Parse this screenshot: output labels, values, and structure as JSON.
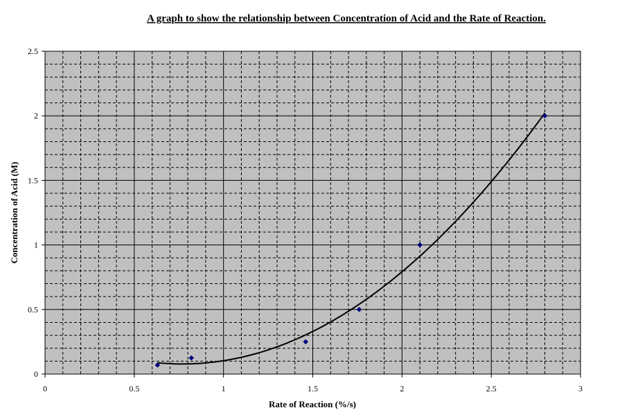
{
  "chart_data": {
    "type": "scatter",
    "title": "A graph to show the relationship between Concentration of Acid and the Rate of Reaction.",
    "xlabel": "Rate of Reaction (%/s)",
    "ylabel": "Concentration of Acid (M)",
    "xlim": [
      0,
      3
    ],
    "ylim": [
      0,
      2.5
    ],
    "x_ticks": [
      "0",
      "0.5",
      "1",
      "1.5",
      "2",
      "2.5",
      "3"
    ],
    "y_ticks": [
      "0",
      "0.5",
      "1",
      "1.5",
      "2",
      "2.5"
    ],
    "grid": {
      "major": true,
      "minor": true,
      "minor_style": "dashed"
    },
    "plot_background": "#c0c0c0",
    "marker_color": "#000080",
    "trendline_color": "#000000",
    "series": [
      {
        "marker": "diamond",
        "points": [
          {
            "x": 0.63,
            "y": 0.07
          },
          {
            "x": 0.82,
            "y": 0.125
          },
          {
            "x": 1.46,
            "y": 0.25
          },
          {
            "x": 1.76,
            "y": 0.5
          },
          {
            "x": 2.1,
            "y": 1.0
          },
          {
            "x": 2.8,
            "y": 2.0
          }
        ]
      }
    ],
    "trendline": {
      "type": "polynomial",
      "order": 2,
      "x_range": [
        0.63,
        2.8
      ]
    }
  }
}
